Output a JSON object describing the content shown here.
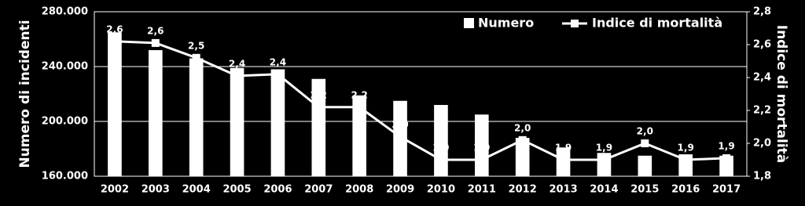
{
  "chart_data": {
    "type": "bar-line",
    "y_label": "Numero di incidenti",
    "y2_label": "Indice di mortalità",
    "categories": [
      "2002",
      "2003",
      "2004",
      "2005",
      "2006",
      "2007",
      "2008",
      "2009",
      "2010",
      "2011",
      "2012",
      "2013",
      "2014",
      "2015",
      "2016",
      "2017"
    ],
    "series": [
      {
        "name": "Numero",
        "type": "bar",
        "color": "#ffffff",
        "values": [
          265000,
          252000,
          246000,
          239000,
          238000,
          231000,
          219000,
          215000,
          212000,
          205000,
          188000,
          181000,
          177000,
          175000,
          176000,
          175000
        ]
      },
      {
        "name": "Indice di mortalità",
        "type": "line",
        "axis": "y2",
        "color": "#ffffff",
        "values": [
          2.62,
          2.61,
          2.52,
          2.41,
          2.42,
          2.22,
          2.22,
          2.04,
          1.9,
          1.9,
          2.02,
          1.9,
          1.9,
          2.0,
          1.9,
          1.91
        ],
        "value_labels": [
          "2,6",
          "2,6",
          "2,5",
          "2,4",
          "2,4",
          "2,2",
          "2,2",
          "2,0",
          "1,9",
          "1,9",
          "2,0",
          "1,9",
          "1,9",
          "2,0",
          "1,9",
          "1,9"
        ]
      }
    ],
    "ylim": [
      160000,
      280000
    ],
    "yticks": [
      {
        "value": 160000,
        "label": "160.000"
      },
      {
        "value": 200000,
        "label": "200.000"
      },
      {
        "value": 240000,
        "label": "240.000"
      },
      {
        "value": 280000,
        "label": "280.000"
      }
    ],
    "y2lim": [
      1.8,
      2.8
    ],
    "y2ticks": [
      {
        "value": 1.8,
        "label": "1,8"
      },
      {
        "value": 2.0,
        "label": "2,0"
      },
      {
        "value": 2.2,
        "label": "2,2"
      },
      {
        "value": 2.4,
        "label": "2,4"
      },
      {
        "value": 2.6,
        "label": "2,6"
      },
      {
        "value": 2.8,
        "label": "2,8"
      }
    ],
    "grid": true,
    "legend": "top-right"
  }
}
